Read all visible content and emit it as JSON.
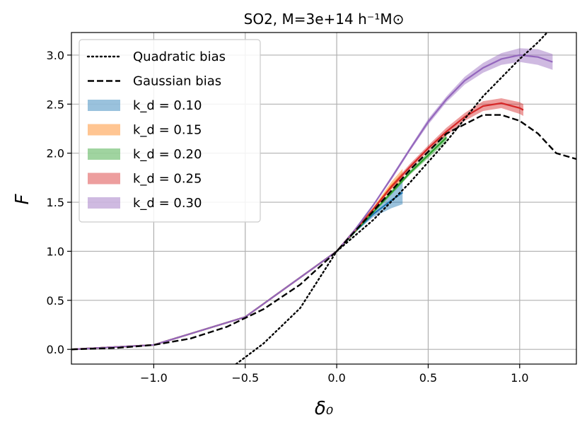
{
  "chart_data": {
    "type": "line",
    "title": "SO2, M=3e+14 h⁻¹M⊙",
    "xlabel": "δ₀",
    "ylabel": "F",
    "xlim": [
      -1.45,
      1.31
    ],
    "ylim": [
      -0.15,
      3.23
    ],
    "grid": true,
    "legend_placement": "top-left",
    "x_ticks": [
      -1.0,
      -0.5,
      0.0,
      0.5,
      1.0
    ],
    "y_ticks": [
      0.0,
      0.5,
      1.0,
      1.5,
      2.0,
      2.5,
      3.0
    ],
    "x_tick_labels": [
      "−1.0",
      "−0.5",
      "0.0",
      "0.5",
      "1.0"
    ],
    "y_tick_labels": [
      "0.0",
      "0.5",
      "1.0",
      "1.5",
      "2.0",
      "2.5",
      "3.0"
    ],
    "legend": [
      {
        "label": "Quadratic bias",
        "style": "dotted",
        "color": "#000000"
      },
      {
        "label": "Gaussian bias",
        "style": "dashed",
        "color": "#000000"
      },
      {
        "label": "k_d = 0.10",
        "style": "band",
        "color": "#1f77b4"
      },
      {
        "label": "k_d = 0.15",
        "style": "band",
        "color": "#ff7f0e"
      },
      {
        "label": "k_d = 0.20",
        "style": "band",
        "color": "#2ca02c"
      },
      {
        "label": "k_d = 0.25",
        "style": "band",
        "color": "#d62728"
      },
      {
        "label": "k_d = 0.30",
        "style": "band",
        "color": "#9467bd"
      }
    ],
    "gaussian_bias": {
      "x": [
        -1.45,
        -1.2,
        -1.0,
        -0.8,
        -0.6,
        -0.4,
        -0.2,
        0.0,
        0.2,
        0.4,
        0.6,
        0.8,
        0.9,
        1.0,
        1.1,
        1.2,
        1.31
      ],
      "y": [
        0.0,
        0.015,
        0.045,
        0.11,
        0.23,
        0.41,
        0.66,
        1.0,
        1.41,
        1.83,
        2.2,
        2.39,
        2.39,
        2.33,
        2.2,
        2.0,
        1.94
      ]
    },
    "quadratic_bias": {
      "x": [
        -0.55,
        -0.4,
        -0.2,
        0.0,
        0.2,
        0.4,
        0.6,
        0.8,
        1.0,
        1.1,
        1.15
      ],
      "y": [
        -0.15,
        0.06,
        0.42,
        1.0,
        1.32,
        1.7,
        2.12,
        2.58,
        2.96,
        3.13,
        3.23
      ]
    },
    "series": [
      {
        "name": "k_d = 0.10",
        "color": "#1f77b4",
        "x": [
          -1.45,
          -1.0,
          -0.5,
          0.0,
          0.1,
          0.2,
          0.3,
          0.36
        ],
        "y": [
          0.0,
          0.045,
          0.33,
          1.0,
          1.2,
          1.38,
          1.52,
          1.6
        ],
        "band": [
          0.0,
          0.0,
          0.0,
          0.0,
          0.01,
          0.03,
          0.08,
          0.12
        ]
      },
      {
        "name": "k_d = 0.15",
        "color": "#ff7f0e",
        "x": [
          -1.45,
          -1.0,
          -0.5,
          0.0,
          0.1,
          0.2,
          0.3,
          0.36
        ],
        "y": [
          0.0,
          0.045,
          0.33,
          1.0,
          1.22,
          1.43,
          1.67,
          1.78
        ],
        "band": [
          0.0,
          0.0,
          0.0,
          0.0,
          0.01,
          0.02,
          0.04,
          0.06
        ]
      },
      {
        "name": "k_d = 0.20",
        "color": "#2ca02c",
        "x": [
          -1.45,
          -1.0,
          -0.5,
          0.0,
          0.1,
          0.2,
          0.3,
          0.4,
          0.5,
          0.6
        ],
        "y": [
          0.0,
          0.045,
          0.33,
          1.0,
          1.2,
          1.4,
          1.6,
          1.8,
          1.98,
          2.16
        ],
        "band": [
          0.0,
          0.0,
          0.0,
          0.0,
          0.01,
          0.01,
          0.02,
          0.02,
          0.03,
          0.04
        ]
      },
      {
        "name": "k_d = 0.25",
        "color": "#d62728",
        "x": [
          -1.45,
          -1.0,
          -0.5,
          0.0,
          0.1,
          0.2,
          0.3,
          0.4,
          0.5,
          0.6,
          0.7,
          0.8,
          0.9,
          1.0,
          1.02
        ],
        "y": [
          0.0,
          0.045,
          0.33,
          1.0,
          1.21,
          1.43,
          1.66,
          1.86,
          2.05,
          2.22,
          2.37,
          2.48,
          2.51,
          2.46,
          2.44
        ],
        "band": [
          0.0,
          0.0,
          0.0,
          0.0,
          0.005,
          0.01,
          0.02,
          0.03,
          0.03,
          0.04,
          0.04,
          0.05,
          0.05,
          0.06,
          0.06
        ]
      },
      {
        "name": "k_d = 0.30",
        "color": "#9467bd",
        "x": [
          -1.45,
          -1.0,
          -0.5,
          0.0,
          0.1,
          0.2,
          0.3,
          0.4,
          0.5,
          0.6,
          0.7,
          0.8,
          0.9,
          1.0,
          1.1,
          1.18
        ],
        "y": [
          0.0,
          0.045,
          0.33,
          1.0,
          1.22,
          1.47,
          1.75,
          2.04,
          2.32,
          2.55,
          2.74,
          2.87,
          2.96,
          3.0,
          2.98,
          2.93
        ],
        "band": [
          0.0,
          0.0,
          0.0,
          0.0,
          0.005,
          0.01,
          0.02,
          0.02,
          0.03,
          0.03,
          0.04,
          0.05,
          0.06,
          0.07,
          0.08,
          0.08
        ]
      }
    ]
  }
}
